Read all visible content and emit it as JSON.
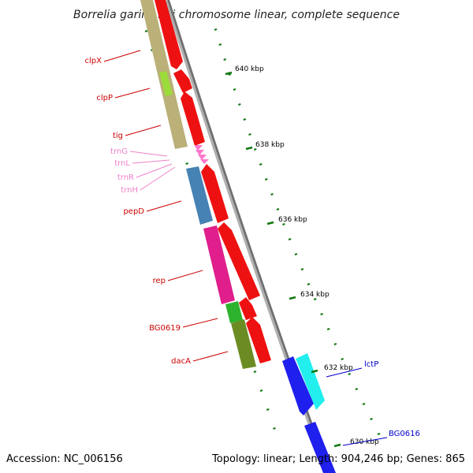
{
  "title": "Borrelia garinii PBi chromosome linear, complete sequence",
  "footer": {
    "accession": "Accession: NC_006156",
    "summary": "Topology: linear; Length: 904,246 bp; Genes: 865"
  },
  "colors": {
    "backbone": "#808080",
    "forward_label": "#cc0000",
    "trna_label": "#ee82c8",
    "reverse_label": "#0000cc",
    "tick": "#117711"
  },
  "ruler": [
    {
      "label": "640 kbp",
      "kbp": 640
    },
    {
      "label": "638 kbp",
      "kbp": 638
    },
    {
      "label": "636 kbp",
      "kbp": 636
    },
    {
      "label": "634 kbp",
      "kbp": 634
    },
    {
      "label": "632 kbp",
      "kbp": 632
    },
    {
      "label": "630 kbp",
      "kbp": 630
    }
  ],
  "genes": [
    {
      "name": "clpX",
      "kind": "forward"
    },
    {
      "name": "clpP",
      "kind": "forward"
    },
    {
      "name": "tig",
      "kind": "forward"
    },
    {
      "name": "trnG",
      "kind": "trna"
    },
    {
      "name": "trnL",
      "kind": "trna"
    },
    {
      "name": "trnR",
      "kind": "trna"
    },
    {
      "name": "trnH",
      "kind": "trna"
    },
    {
      "name": "pepD",
      "kind": "forward"
    },
    {
      "name": "rep",
      "kind": "forward"
    },
    {
      "name": "BG0619",
      "kind": "forward"
    },
    {
      "name": "dacA",
      "kind": "forward"
    },
    {
      "name": "lctP",
      "kind": "reverse"
    },
    {
      "name": "BG0616",
      "kind": "reverse"
    }
  ]
}
